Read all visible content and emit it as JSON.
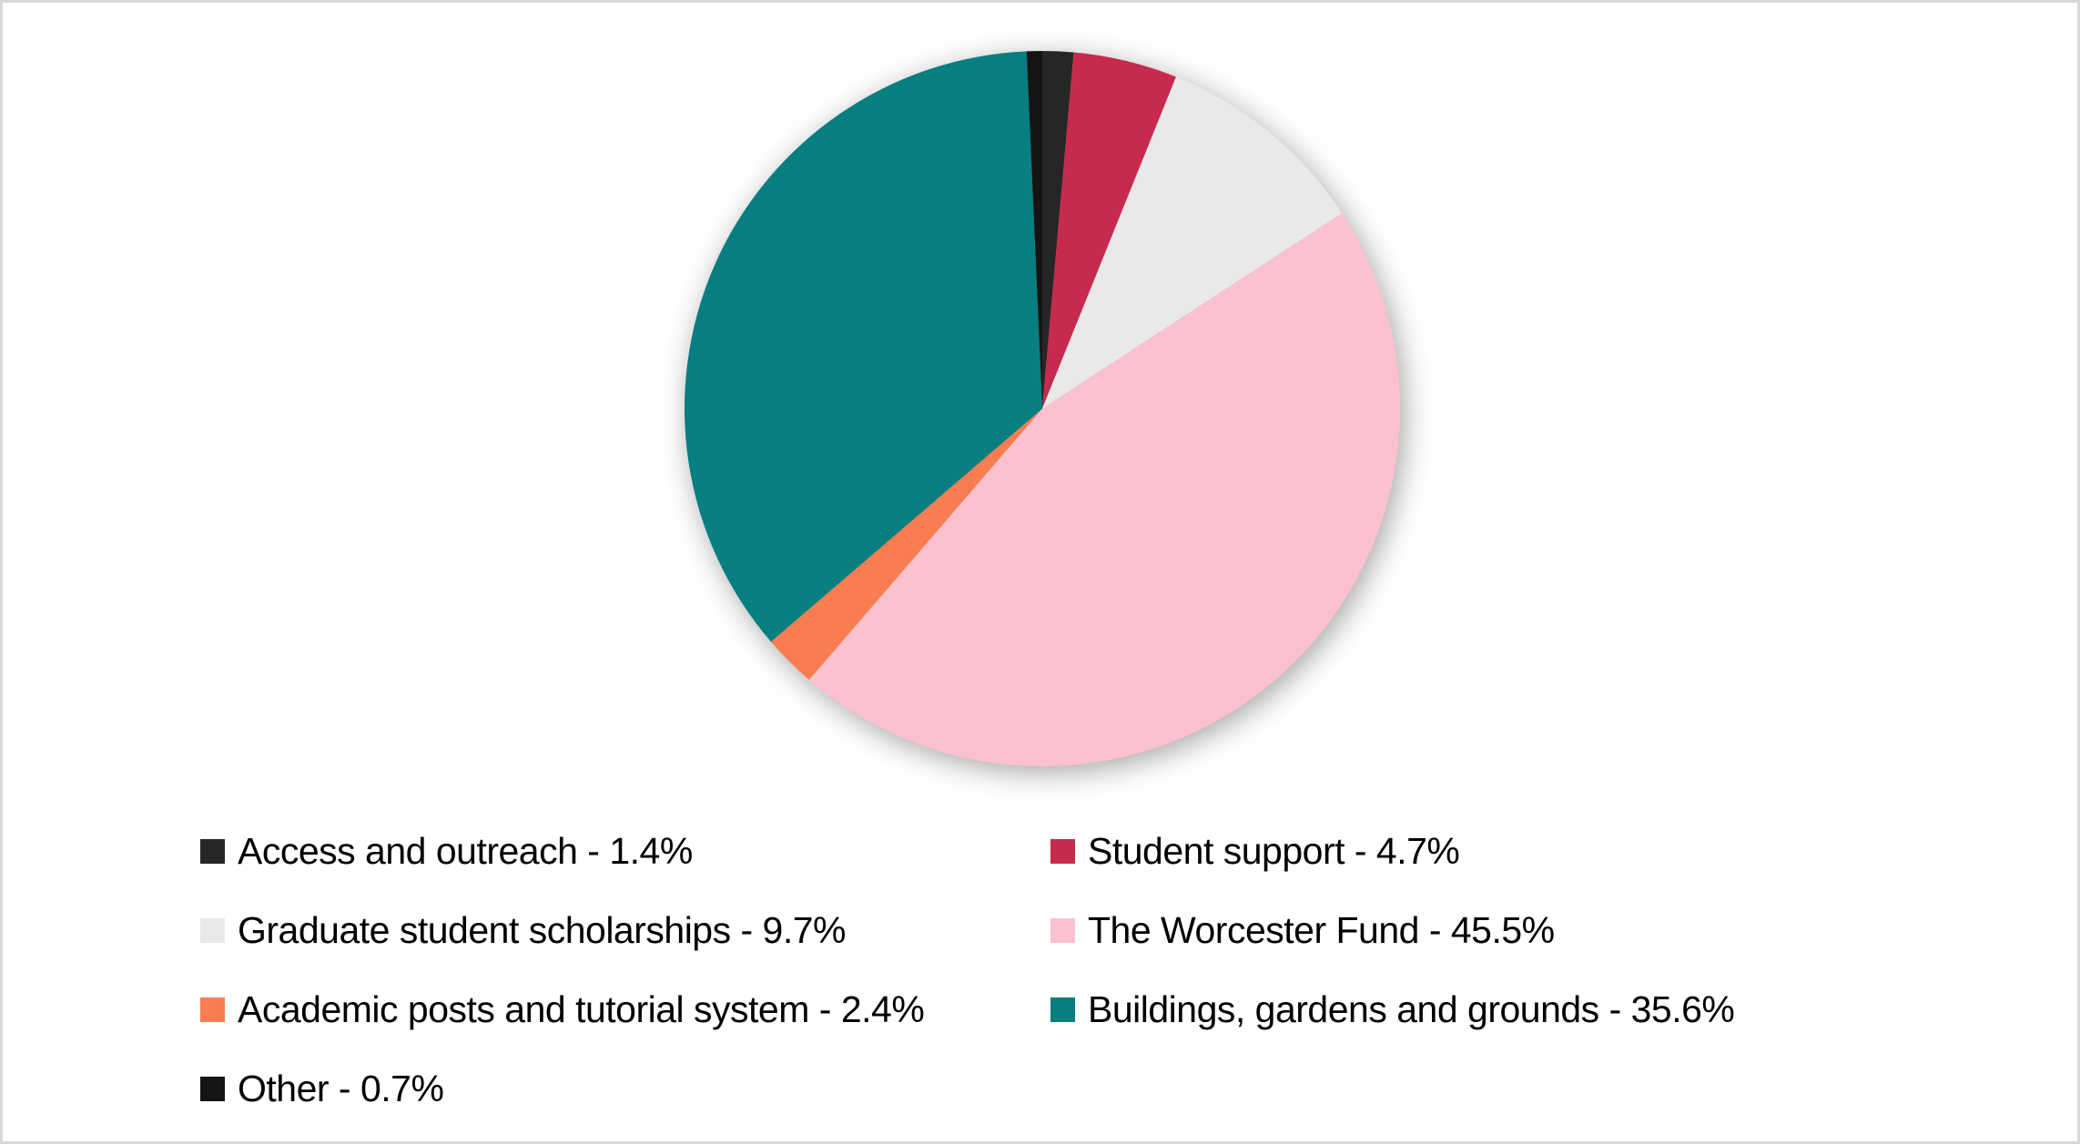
{
  "page": {
    "background": "#FFFFFF",
    "border_color": "#D8D8D8",
    "text_color": "#000000"
  },
  "chart_data": {
    "type": "pie",
    "title": "",
    "start_angle_deg": 0,
    "direction": "clockwise",
    "legend_position": "bottom-left",
    "legend_columns": 2,
    "label_format": "{name} - {value}%",
    "slices": [
      {
        "name": "Access and outreach",
        "value": 1.4,
        "color": "#262626"
      },
      {
        "name": "Student support",
        "value": 4.7,
        "color": "#C62A4D"
      },
      {
        "name": "Graduate student scholarships",
        "value": 9.7,
        "color": "#E9E9E9"
      },
      {
        "name": "The Worcester Fund",
        "value": 45.5,
        "color": "#FBC1CE"
      },
      {
        "name": "Academic posts and tutorial system",
        "value": 2.4,
        "color": "#F87D50"
      },
      {
        "name": "Buildings, gardens and grounds",
        "value": 35.6,
        "color": "#077E80"
      },
      {
        "name": "Other",
        "value": 0.7,
        "color": "#141414"
      }
    ]
  }
}
